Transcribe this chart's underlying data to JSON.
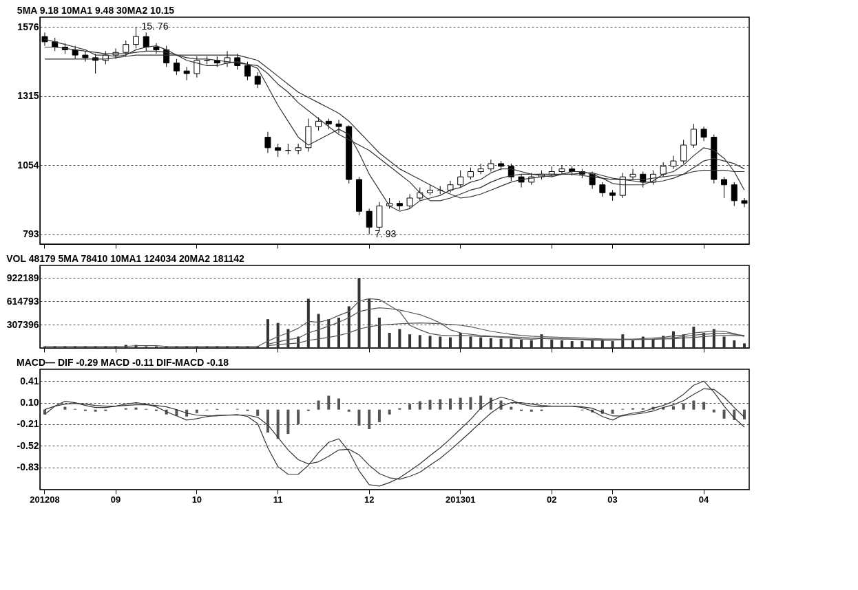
{
  "chart_data": [
    {
      "type": "candlestick",
      "title": "5MA 9.18   10MA1 9.48   30MA2 10.15",
      "tick_labels": "y",
      "grid": "y",
      "categories": [
        "201208",
        null,
        null,
        null,
        null,
        null,
        null,
        "09",
        null,
        null,
        null,
        null,
        null,
        null,
        null,
        "10",
        null,
        null,
        null,
        null,
        null,
        null,
        null,
        "11",
        null,
        null,
        null,
        null,
        null,
        null,
        null,
        null,
        "12",
        null,
        null,
        null,
        null,
        null,
        null,
        null,
        null,
        "201301",
        null,
        null,
        null,
        null,
        null,
        null,
        null,
        null,
        "02",
        null,
        null,
        null,
        null,
        null,
        "03",
        null,
        null,
        null,
        null,
        null,
        null,
        null,
        null,
        "04",
        null,
        null,
        null,
        null
      ],
      "ylim": [
        756,
        1613
      ],
      "yticks": [
        793,
        1054,
        1315,
        1576
      ],
      "ohlc": [
        [
          1540,
          1555,
          1505,
          1520
        ],
        [
          1520,
          1535,
          1485,
          1500
        ],
        [
          1500,
          1515,
          1475,
          1490
        ],
        [
          1490,
          1505,
          1455,
          1470
        ],
        [
          1470,
          1485,
          1445,
          1460
        ],
        [
          1460,
          1475,
          1400,
          1450
        ],
        [
          1450,
          1485,
          1435,
          1470
        ],
        [
          1470,
          1495,
          1455,
          1480
        ],
        [
          1480,
          1525,
          1465,
          1510
        ],
        [
          1510,
          1576,
          1495,
          1540
        ],
        [
          1540,
          1555,
          1485,
          1500
        ],
        [
          1500,
          1515,
          1475,
          1490
        ],
        [
          1490,
          1505,
          1425,
          1440
        ],
        [
          1440,
          1455,
          1395,
          1410
        ],
        [
          1410,
          1425,
          1375,
          1400
        ],
        [
          1400,
          1465,
          1385,
          1450
        ],
        [
          1450,
          1465,
          1435,
          1450
        ],
        [
          1450,
          1465,
          1425,
          1440
        ],
        [
          1440,
          1485,
          1425,
          1460
        ],
        [
          1460,
          1475,
          1415,
          1430
        ],
        [
          1430,
          1445,
          1375,
          1390
        ],
        [
          1390,
          1405,
          1345,
          1360
        ],
        [
          1160,
          1180,
          1100,
          1120
        ],
        [
          1120,
          1135,
          1085,
          1110
        ],
        [
          1110,
          1135,
          1095,
          1110
        ],
        [
          1110,
          1135,
          1095,
          1120
        ],
        [
          1120,
          1230,
          1105,
          1200
        ],
        [
          1200,
          1235,
          1185,
          1220
        ],
        [
          1220,
          1230,
          1190,
          1210
        ],
        [
          1210,
          1225,
          1175,
          1200
        ],
        [
          1200,
          1205,
          985,
          1000
        ],
        [
          1000,
          1010,
          865,
          880
        ],
        [
          880,
          890,
          793,
          820
        ],
        [
          820,
          915,
          805,
          900
        ],
        [
          900,
          930,
          890,
          910
        ],
        [
          910,
          920,
          885,
          900
        ],
        [
          900,
          945,
          890,
          930
        ],
        [
          930,
          970,
          920,
          950
        ],
        [
          950,
          980,
          940,
          960
        ],
        [
          960,
          975,
          945,
          960
        ],
        [
          960,
          995,
          950,
          980
        ],
        [
          980,
          1035,
          970,
          1010
        ],
        [
          1010,
          1045,
          1000,
          1030
        ],
        [
          1030,
          1060,
          1020,
          1040
        ],
        [
          1040,
          1075,
          1030,
          1060
        ],
        [
          1060,
          1070,
          1035,
          1050
        ],
        [
          1050,
          1060,
          995,
          1010
        ],
        [
          1010,
          1020,
          970,
          990
        ],
        [
          990,
          1025,
          980,
          1010
        ],
        [
          1010,
          1035,
          1000,
          1020
        ],
        [
          1020,
          1050,
          1010,
          1030
        ],
        [
          1030,
          1055,
          1020,
          1040
        ],
        [
          1040,
          1050,
          1015,
          1030
        ],
        [
          1030,
          1040,
          1005,
          1020
        ],
        [
          1020,
          1030,
          965,
          980
        ],
        [
          980,
          990,
          935,
          950
        ],
        [
          950,
          960,
          920,
          940
        ],
        [
          940,
          1025,
          930,
          1010
        ],
        [
          1010,
          1040,
          1000,
          1020
        ],
        [
          1020,
          1030,
          970,
          990
        ],
        [
          990,
          1035,
          980,
          1020
        ],
        [
          1020,
          1065,
          1010,
          1050
        ],
        [
          1050,
          1090,
          1040,
          1070
        ],
        [
          1070,
          1150,
          1060,
          1130
        ],
        [
          1130,
          1210,
          1120,
          1190
        ],
        [
          1190,
          1200,
          1145,
          1160
        ],
        [
          1160,
          1170,
          985,
          1000
        ],
        [
          1000,
          1010,
          930,
          980
        ],
        [
          980,
          990,
          900,
          920
        ],
        [
          920,
          930,
          895,
          910
        ]
      ],
      "series": [
        {
          "type": "line",
          "color": "#333333",
          "values": [
            1530,
            1520,
            1510,
            1500,
            1490,
            1470,
            1470,
            1465,
            1470,
            1490,
            1500,
            1505,
            1490,
            1470,
            1450,
            1440,
            1430,
            1430,
            1440,
            1445,
            1435,
            1420,
            1350,
            1280,
            1220,
            1160,
            1130,
            1150,
            1170,
            1190,
            1170,
            1100,
            1020,
            960,
            900,
            880,
            890,
            920,
            930,
            940,
            960,
            970,
            990,
            1000,
            1025,
            1040,
            1040,
            1030,
            1020,
            1015,
            1010,
            1020,
            1030,
            1030,
            1020,
            1005,
            985,
            980,
            980,
            980,
            995,
            1020,
            1030,
            1055,
            1090,
            1120,
            1110,
            1080,
            1030,
            960
          ]
        },
        {
          "type": "line",
          "color": "#333333",
          "values": [
            1500,
            1500,
            1495,
            1490,
            1485,
            1480,
            1475,
            1475,
            1475,
            1480,
            1485,
            1485,
            1480,
            1470,
            1460,
            1455,
            1455,
            1450,
            1445,
            1440,
            1435,
            1430,
            1400,
            1360,
            1330,
            1290,
            1260,
            1230,
            1200,
            1170,
            1150,
            1130,
            1110,
            1080,
            1050,
            1020,
            990,
            950,
            920,
            920,
            930,
            945,
            960,
            970,
            990,
            1005,
            1015,
            1020,
            1020,
            1020,
            1020,
            1020,
            1020,
            1025,
            1025,
            1015,
            1005,
            1000,
            995,
            990,
            990,
            995,
            1005,
            1020,
            1045,
            1070,
            1080,
            1070,
            1060,
            1040
          ]
        },
        {
          "type": "line",
          "color": "#333333",
          "values": [
            1455,
            1455,
            1455,
            1455,
            1455,
            1455,
            1455,
            1460,
            1465,
            1470,
            1470,
            1470,
            1470,
            1470,
            1470,
            1470,
            1470,
            1470,
            1470,
            1470,
            1460,
            1450,
            1420,
            1390,
            1360,
            1330,
            1310,
            1290,
            1270,
            1250,
            1220,
            1180,
            1140,
            1100,
            1070,
            1040,
            1020,
            1000,
            980,
            960,
            945,
            930,
            935,
            945,
            960,
            975,
            990,
            1000,
            1005,
            1010,
            1015,
            1020,
            1020,
            1015,
            1010,
            1005,
            1000,
            1000,
            1000,
            1000,
            1005,
            1010,
            1015,
            1020,
            1030,
            1035,
            1035,
            1035,
            1030,
            1030
          ]
        }
      ],
      "annotations": [
        "15. 76",
        "7. 93"
      ]
    },
    {
      "type": "bar",
      "title": "VOL 48179   5MA 78410   10MA1 124034   20MA2 181142",
      "tick_labels": "y",
      "grid": "y",
      "categories": [
        "201208",
        null,
        null,
        null,
        null,
        null,
        null,
        "09",
        null,
        null,
        null,
        null,
        null,
        null,
        null,
        "10",
        null,
        null,
        null,
        null,
        null,
        null,
        null,
        "11",
        null,
        null,
        null,
        null,
        null,
        null,
        null,
        null,
        "12",
        null,
        null,
        null,
        null,
        null,
        null,
        null,
        null,
        "201301",
        null,
        null,
        null,
        null,
        null,
        null,
        null,
        null,
        "02",
        null,
        null,
        null,
        null,
        null,
        "03",
        null,
        null,
        null,
        null,
        null,
        null,
        null,
        null,
        "04",
        null,
        null,
        null,
        null
      ],
      "ylim": [
        0,
        1090000
      ],
      "yticks": [
        307396,
        614793,
        922189
      ],
      "series": [
        {
          "type": "bar",
          "color": "#333333",
          "values": [
            20000,
            20000,
            20000,
            20000,
            20000,
            20000,
            20000,
            20000,
            40000,
            40000,
            20000,
            20000,
            20000,
            20000,
            20000,
            20000,
            20000,
            20000,
            20000,
            20000,
            20000,
            20000,
            380000,
            330000,
            250000,
            150000,
            650000,
            450000,
            380000,
            400000,
            550000,
            922189,
            650000,
            400000,
            200000,
            250000,
            180000,
            170000,
            160000,
            150000,
            140000,
            200000,
            150000,
            140000,
            130000,
            120000,
            120000,
            110000,
            100000,
            180000,
            110000,
            100000,
            90000,
            90000,
            100000,
            110000,
            90000,
            180000,
            100000,
            150000,
            120000,
            160000,
            220000,
            180000,
            280000,
            200000,
            250000,
            150000,
            100000,
            60000
          ]
        },
        {
          "type": "line",
          "color": "#555555",
          "values": [
            20000,
            20000,
            20000,
            20000,
            20000,
            20000,
            20000,
            20000,
            20000,
            30000,
            30000,
            30000,
            20000,
            20000,
            20000,
            20000,
            20000,
            20000,
            20000,
            20000,
            20000,
            20000,
            90000,
            150000,
            200000,
            260000,
            350000,
            340000,
            370000,
            430000,
            480000,
            620000,
            650000,
            640000,
            560000,
            480000,
            300000,
            240000,
            190000,
            170000,
            160000,
            165000,
            160000,
            150000,
            150000,
            140000,
            130000,
            120000,
            115000,
            125000,
            120000,
            120000,
            115000,
            110000,
            100000,
            100000,
            100000,
            115000,
            115000,
            125000,
            130000,
            140000,
            160000,
            170000,
            200000,
            210000,
            225000,
            220000,
            190000,
            150000
          ]
        },
        {
          "type": "line",
          "color": "#555555",
          "values": [
            null,
            null,
            null,
            null,
            null,
            null,
            null,
            null,
            null,
            null,
            null,
            null,
            null,
            null,
            null,
            null,
            null,
            null,
            null,
            null,
            null,
            null,
            50000,
            80000,
            110000,
            130000,
            200000,
            240000,
            290000,
            340000,
            400000,
            480000,
            510000,
            530000,
            520000,
            500000,
            470000,
            440000,
            390000,
            330000,
            240000,
            200000,
            180000,
            165000,
            155000,
            150000,
            145000,
            140000,
            130000,
            130000,
            125000,
            120000,
            118000,
            115000,
            112000,
            110000,
            108000,
            110000,
            110000,
            112000,
            115000,
            125000,
            135000,
            150000,
            170000,
            180000,
            190000,
            195000,
            180000,
            165000
          ]
        },
        {
          "type": "line",
          "color": "#555555",
          "values": [
            null,
            null,
            null,
            null,
            null,
            null,
            null,
            null,
            null,
            null,
            null,
            null,
            null,
            null,
            null,
            null,
            null,
            null,
            null,
            null,
            null,
            null,
            30000,
            45000,
            55000,
            65000,
            100000,
            120000,
            140000,
            165000,
            200000,
            250000,
            280000,
            300000,
            310000,
            320000,
            325000,
            330000,
            325000,
            320000,
            310000,
            300000,
            280000,
            250000,
            220000,
            200000,
            180000,
            165000,
            155000,
            150000,
            145000,
            140000,
            135000,
            130000,
            125000,
            120000,
            118000,
            116000,
            115000,
            115000,
            115000,
            118000,
            122000,
            130000,
            140000,
            150000,
            160000,
            165000,
            165000,
            160000
          ]
        }
      ]
    },
    {
      "type": "line",
      "title": "MACD— DIF -0.29   MACD -0.11   DIF-MACD -0.18",
      "grid": "y",
      "categories": [
        "201208",
        null,
        null,
        null,
        null,
        null,
        null,
        "09",
        null,
        null,
        null,
        null,
        null,
        null,
        null,
        "10",
        null,
        null,
        null,
        null,
        null,
        null,
        null,
        "11",
        null,
        null,
        null,
        null,
        null,
        null,
        null,
        null,
        "12",
        null,
        null,
        null,
        null,
        null,
        null,
        null,
        null,
        "201301",
        null,
        null,
        null,
        null,
        null,
        null,
        null,
        null,
        "02",
        null,
        null,
        null,
        null,
        null,
        "03",
        null,
        null,
        null,
        null,
        null,
        null,
        null,
        null,
        "04",
        null,
        null,
        null,
        null
      ],
      "ylim": [
        -1.15,
        0.58
      ],
      "yticks": [
        -0.83,
        -0.52,
        -0.21,
        {
          "value": 0.1,
          "label": "0.10"
        },
        0.41
      ],
      "series": [
        {
          "type": "bar",
          "color": "#555555",
          "values": [
            -0.07,
            0.0,
            0.04,
            0.01,
            -0.02,
            -0.03,
            -0.02,
            0.0,
            0.02,
            0.03,
            0.01,
            -0.02,
            -0.07,
            -0.09,
            -0.1,
            -0.05,
            -0.01,
            0.01,
            0.0,
            0.01,
            -0.02,
            -0.09,
            -0.33,
            -0.42,
            -0.35,
            -0.21,
            -0.02,
            0.13,
            0.2,
            0.16,
            -0.03,
            -0.23,
            -0.28,
            -0.18,
            -0.07,
            0.02,
            0.08,
            0.12,
            0.14,
            0.15,
            0.16,
            0.17,
            0.18,
            0.2,
            0.17,
            0.13,
            0.04,
            -0.02,
            -0.03,
            -0.02,
            0.0,
            0.0,
            0.0,
            -0.01,
            -0.04,
            -0.06,
            -0.06,
            0.01,
            0.02,
            0.02,
            0.04,
            0.03,
            0.05,
            0.09,
            0.13,
            0.11,
            -0.04,
            -0.13,
            -0.15,
            -0.14
          ]
        },
        {
          "type": "line",
          "color": "#333333",
          "values": [
            -0.07,
            0.05,
            0.12,
            0.1,
            0.06,
            0.03,
            0.03,
            0.05,
            0.08,
            0.1,
            0.08,
            0.04,
            -0.03,
            -0.09,
            -0.15,
            -0.13,
            -0.1,
            -0.08,
            -0.08,
            -0.07,
            -0.1,
            -0.2,
            -0.55,
            -0.82,
            -0.93,
            -0.93,
            -0.8,
            -0.62,
            -0.47,
            -0.42,
            -0.6,
            -0.88,
            -1.08,
            -1.1,
            -1.05,
            -0.98,
            -0.88,
            -0.78,
            -0.66,
            -0.55,
            -0.42,
            -0.28,
            -0.14,
            0.02,
            0.12,
            0.18,
            0.14,
            0.08,
            0.05,
            0.04,
            0.05,
            0.05,
            0.05,
            0.03,
            -0.02,
            -0.1,
            -0.15,
            -0.08,
            -0.05,
            -0.03,
            0.02,
            0.06,
            0.12,
            0.22,
            0.35,
            0.41,
            0.25,
            0.05,
            -0.12,
            -0.25
          ]
        },
        {
          "type": "line",
          "color": "#333333",
          "values": [
            0.0,
            0.05,
            0.08,
            0.09,
            0.08,
            0.06,
            0.05,
            0.05,
            0.06,
            0.07,
            0.07,
            0.06,
            0.04,
            0.0,
            -0.05,
            -0.08,
            -0.09,
            -0.09,
            -0.08,
            -0.08,
            -0.08,
            -0.11,
            -0.22,
            -0.4,
            -0.58,
            -0.72,
            -0.78,
            -0.75,
            -0.67,
            -0.58,
            -0.57,
            -0.65,
            -0.8,
            -0.92,
            -0.98,
            -1.0,
            -0.96,
            -0.9,
            -0.8,
            -0.7,
            -0.58,
            -0.45,
            -0.32,
            -0.18,
            -0.05,
            0.05,
            0.1,
            0.1,
            0.08,
            0.06,
            0.05,
            0.05,
            0.05,
            0.04,
            0.02,
            -0.04,
            -0.09,
            -0.09,
            -0.07,
            -0.05,
            -0.02,
            0.03,
            0.07,
            0.13,
            0.22,
            0.3,
            0.29,
            0.18,
            0.03,
            -0.11
          ]
        }
      ]
    }
  ]
}
